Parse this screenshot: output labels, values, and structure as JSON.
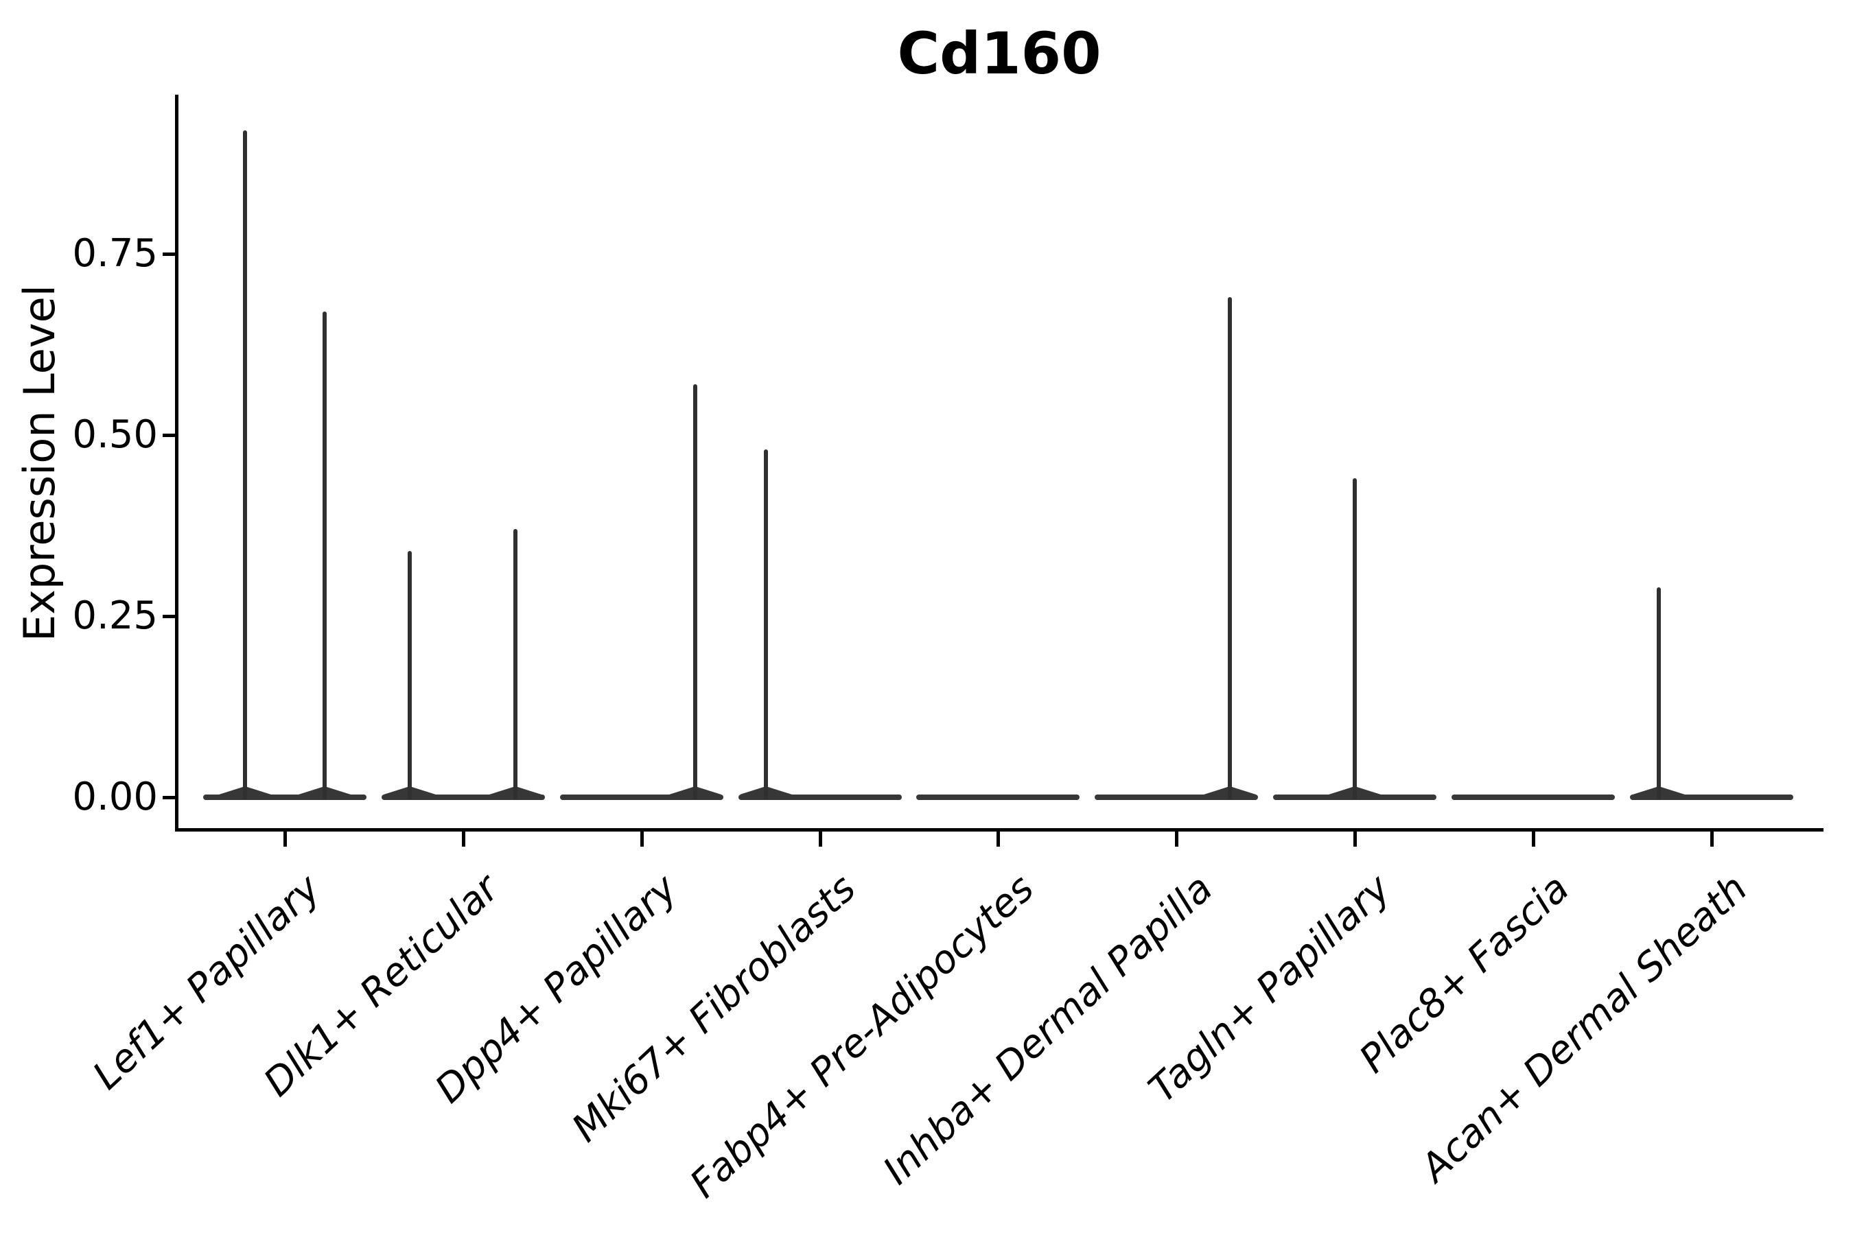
{
  "chart_data": {
    "type": "violin",
    "title": "Cd160",
    "xlabel": "",
    "ylabel": "Expression Level",
    "ylim": [
      -0.044,
      0.968
    ],
    "yticks": [
      0.0,
      0.25,
      0.5,
      0.75
    ],
    "ytick_labels": [
      "0.00",
      "0.25",
      "0.50",
      "0.75"
    ],
    "grid": false,
    "legend": "none",
    "background_color": "#ffffff",
    "axis_color": "#000000",
    "violin_color": "#303030",
    "categories": [
      "Lef1+ Papillary",
      "Dlk1+ Reticular",
      "Dpp4+ Papillary",
      "Mki67+ Fibroblasts",
      "Fabp4+ Pre-Adipocytes",
      "Inhba+ Dermal Papilla",
      "Tagln+ Papillary",
      "Plac8+ Fascia",
      "Acan+ Dermal Sheath"
    ],
    "violins": [
      {
        "category": "Lef1+ Papillary",
        "base_halfwidth_frac": 0.458,
        "spikes": [
          {
            "offset_frac": -0.223,
            "max": 0.92
          },
          {
            "offset_frac": 0.223,
            "max": 0.67
          }
        ]
      },
      {
        "category": "Dlk1+ Reticular",
        "base_halfwidth_frac": 0.458,
        "spikes": [
          {
            "offset_frac": -0.3,
            "max": 0.34
          },
          {
            "offset_frac": 0.293,
            "max": 0.37
          }
        ]
      },
      {
        "category": "Dpp4+ Papillary",
        "base_halfwidth_frac": 0.458,
        "spikes": [
          {
            "offset_frac": 0.301,
            "max": 0.57
          }
        ]
      },
      {
        "category": "Mki67+ Fibroblasts",
        "base_halfwidth_frac": 0.458,
        "spikes": [
          {
            "offset_frac": -0.303,
            "max": 0.48
          }
        ]
      },
      {
        "category": "Fabp4+ Pre-Adipocytes",
        "base_halfwidth_frac": 0.458,
        "spikes": []
      },
      {
        "category": "Inhba+ Dermal Papilla",
        "base_halfwidth_frac": 0.458,
        "spikes": [
          {
            "offset_frac": 0.299,
            "max": 0.69
          }
        ]
      },
      {
        "category": "Tagln+ Papillary",
        "base_halfwidth_frac": 0.458,
        "spikes": [
          {
            "offset_frac": 0.0,
            "max": 0.44
          }
        ]
      },
      {
        "category": "Plac8+ Fascia",
        "base_halfwidth_frac": 0.458,
        "spikes": []
      },
      {
        "category": "Acan+ Dermal Sheath",
        "base_halfwidth_frac": 0.458,
        "spikes": [
          {
            "offset_frac": -0.296,
            "max": 0.29
          }
        ]
      }
    ]
  }
}
